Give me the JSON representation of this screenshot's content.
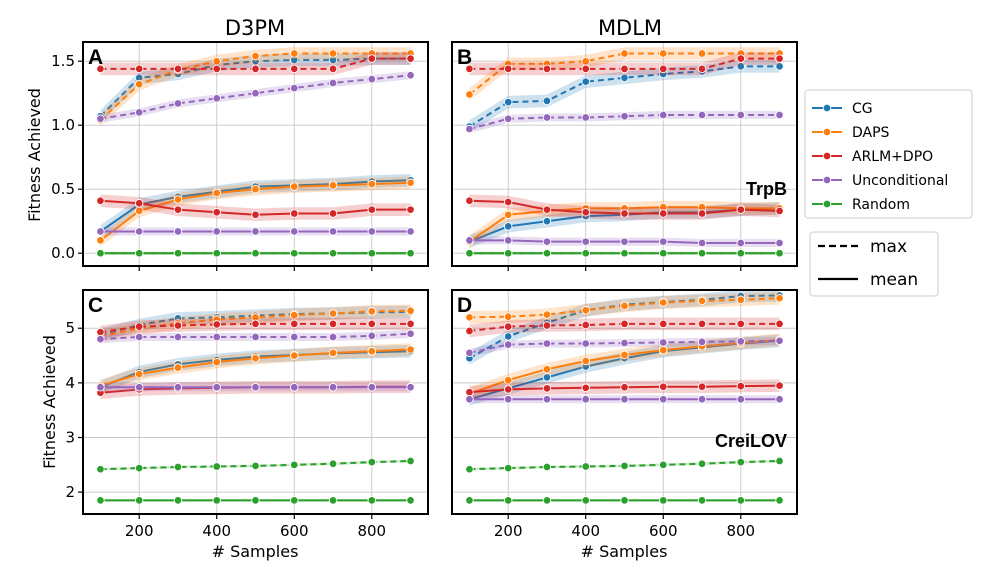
{
  "chart_data": {
    "type": "line",
    "x": [
      100,
      200,
      300,
      400,
      500,
      600,
      700,
      800,
      900
    ],
    "xlabel": "# Samples",
    "ylabel": "Fitness Achieved",
    "xticks": [
      200,
      400,
      600,
      800
    ],
    "colors": {
      "CG": "#1f77b4",
      "DAPS": "#ff7f0e",
      "ARLM+DPO": "#d62728",
      "Unconditional": "#9467bd",
      "Random": "#2ca02c"
    },
    "column_titles": [
      "D3PM",
      "MDLM"
    ],
    "legend": {
      "entries": [
        "CG",
        "DAPS",
        "ARLM+DPO",
        "Unconditional",
        "Random"
      ],
      "styles": [
        "max",
        "mean"
      ],
      "placement": "right"
    },
    "panels": [
      {
        "letter": "A",
        "annotation": "",
        "ylim": [
          -0.1,
          1.65
        ],
        "yticks": [
          0.0,
          0.5,
          1.0,
          1.5
        ],
        "series": [
          {
            "name": "CG",
            "stat": "max",
            "values": [
              1.07,
              1.37,
              1.4,
              1.47,
              1.5,
              1.51,
              1.51,
              1.52,
              1.52
            ]
          },
          {
            "name": "CG",
            "stat": "mean",
            "values": [
              0.17,
              0.38,
              0.44,
              0.48,
              0.52,
              0.53,
              0.54,
              0.56,
              0.57
            ]
          },
          {
            "name": "DAPS",
            "stat": "max",
            "values": [
              1.04,
              1.32,
              1.43,
              1.5,
              1.54,
              1.56,
              1.56,
              1.56,
              1.56
            ]
          },
          {
            "name": "DAPS",
            "stat": "mean",
            "values": [
              0.1,
              0.33,
              0.42,
              0.47,
              0.5,
              0.52,
              0.53,
              0.54,
              0.55
            ]
          },
          {
            "name": "ARLM+DPO",
            "stat": "max",
            "values": [
              1.44,
              1.44,
              1.44,
              1.44,
              1.44,
              1.44,
              1.44,
              1.52,
              1.52
            ]
          },
          {
            "name": "ARLM+DPO",
            "stat": "mean",
            "values": [
              0.41,
              0.39,
              0.34,
              0.32,
              0.3,
              0.31,
              0.31,
              0.34,
              0.34
            ]
          },
          {
            "name": "Unconditional",
            "stat": "max",
            "values": [
              1.05,
              1.1,
              1.17,
              1.21,
              1.25,
              1.29,
              1.33,
              1.36,
              1.39
            ]
          },
          {
            "name": "Unconditional",
            "stat": "mean",
            "values": [
              0.17,
              0.17,
              0.17,
              0.17,
              0.17,
              0.17,
              0.17,
              0.17,
              0.17
            ]
          },
          {
            "name": "Random",
            "stat": "max",
            "values": [
              0.0,
              0.0,
              0.0,
              0.0,
              0.0,
              0.0,
              0.0,
              0.0,
              0.0
            ]
          },
          {
            "name": "Random",
            "stat": "mean",
            "values": [
              0.0,
              0.0,
              0.0,
              0.0,
              0.0,
              0.0,
              0.0,
              0.0,
              0.0
            ]
          }
        ]
      },
      {
        "letter": "B",
        "annotation": "TrpB",
        "ylim": [
          -0.1,
          1.65
        ],
        "yticks": [
          0.0,
          0.5,
          1.0,
          1.5
        ],
        "series": [
          {
            "name": "CG",
            "stat": "max",
            "values": [
              0.99,
              1.18,
              1.19,
              1.34,
              1.37,
              1.4,
              1.42,
              1.46,
              1.46
            ]
          },
          {
            "name": "CG",
            "stat": "mean",
            "values": [
              0.09,
              0.21,
              0.25,
              0.29,
              0.3,
              0.32,
              0.32,
              0.34,
              0.35
            ]
          },
          {
            "name": "DAPS",
            "stat": "max",
            "values": [
              1.24,
              1.48,
              1.48,
              1.5,
              1.56,
              1.56,
              1.56,
              1.56,
              1.56
            ]
          },
          {
            "name": "DAPS",
            "stat": "mean",
            "values": [
              0.09,
              0.3,
              0.33,
              0.35,
              0.35,
              0.36,
              0.36,
              0.35,
              0.35
            ]
          },
          {
            "name": "ARLM+DPO",
            "stat": "max",
            "values": [
              1.44,
              1.44,
              1.44,
              1.44,
              1.44,
              1.44,
              1.44,
              1.52,
              1.52
            ]
          },
          {
            "name": "ARLM+DPO",
            "stat": "mean",
            "values": [
              0.41,
              0.4,
              0.34,
              0.32,
              0.31,
              0.31,
              0.31,
              0.34,
              0.33
            ]
          },
          {
            "name": "Unconditional",
            "stat": "max",
            "values": [
              0.97,
              1.05,
              1.06,
              1.06,
              1.07,
              1.08,
              1.08,
              1.08,
              1.08
            ]
          },
          {
            "name": "Unconditional",
            "stat": "mean",
            "values": [
              0.1,
              0.1,
              0.09,
              0.09,
              0.09,
              0.09,
              0.08,
              0.08,
              0.08
            ]
          },
          {
            "name": "Random",
            "stat": "max",
            "values": [
              0.0,
              0.0,
              0.0,
              0.0,
              0.0,
              0.0,
              0.0,
              0.0,
              0.0
            ]
          },
          {
            "name": "Random",
            "stat": "mean",
            "values": [
              0.0,
              0.0,
              0.0,
              0.0,
              0.0,
              0.0,
              0.0,
              0.0,
              0.0
            ]
          }
        ]
      },
      {
        "letter": "C",
        "annotation": "",
        "ylim": [
          1.6,
          5.7
        ],
        "yticks": [
          2,
          3,
          4,
          5
        ],
        "series": [
          {
            "name": "CG",
            "stat": "max",
            "values": [
              4.88,
              5.06,
              5.18,
              5.2,
              5.23,
              5.26,
              5.27,
              5.29,
              5.3
            ]
          },
          {
            "name": "CG",
            "stat": "mean",
            "values": [
              3.92,
              4.2,
              4.34,
              4.42,
              4.48,
              4.51,
              4.54,
              4.56,
              4.58
            ]
          },
          {
            "name": "DAPS",
            "stat": "max",
            "values": [
              4.85,
              5.0,
              5.09,
              5.16,
              5.2,
              5.24,
              5.27,
              5.31,
              5.32
            ]
          },
          {
            "name": "DAPS",
            "stat": "mean",
            "values": [
              3.95,
              4.16,
              4.28,
              4.38,
              4.45,
              4.5,
              4.55,
              4.58,
              4.61
            ]
          },
          {
            "name": "ARLM+DPO",
            "stat": "max",
            "values": [
              4.93,
              5.03,
              5.05,
              5.07,
              5.08,
              5.08,
              5.08,
              5.08,
              5.08
            ]
          },
          {
            "name": "ARLM+DPO",
            "stat": "mean",
            "values": [
              3.82,
              3.88,
              3.9,
              3.91,
              3.92,
              3.92,
              3.92,
              3.93,
              3.93
            ]
          },
          {
            "name": "Unconditional",
            "stat": "max",
            "values": [
              4.8,
              4.84,
              4.84,
              4.84,
              4.84,
              4.84,
              4.84,
              4.86,
              4.9
            ]
          },
          {
            "name": "Unconditional",
            "stat": "mean",
            "values": [
              3.92,
              3.92,
              3.92,
              3.92,
              3.92,
              3.92,
              3.92,
              3.92,
              3.92
            ]
          },
          {
            "name": "Random",
            "stat": "max",
            "values": [
              2.42,
              2.44,
              2.46,
              2.47,
              2.48,
              2.5,
              2.52,
              2.55,
              2.57
            ]
          },
          {
            "name": "Random",
            "stat": "mean",
            "values": [
              1.85,
              1.85,
              1.85,
              1.85,
              1.85,
              1.85,
              1.85,
              1.85,
              1.85
            ]
          }
        ]
      },
      {
        "letter": "D",
        "annotation": "CreiLOV",
        "ylim": [
          1.6,
          5.7
        ],
        "yticks": [
          2,
          3,
          4,
          5
        ],
        "series": [
          {
            "name": "CG",
            "stat": "max",
            "values": [
              4.45,
              4.85,
              5.1,
              5.33,
              5.43,
              5.48,
              5.52,
              5.59,
              5.6
            ]
          },
          {
            "name": "CG",
            "stat": "mean",
            "values": [
              3.7,
              3.9,
              4.1,
              4.3,
              4.45,
              4.58,
              4.65,
              4.72,
              4.77
            ]
          },
          {
            "name": "DAPS",
            "stat": "max",
            "values": [
              5.2,
              5.21,
              5.25,
              5.33,
              5.41,
              5.47,
              5.5,
              5.52,
              5.55
            ]
          },
          {
            "name": "DAPS",
            "stat": "mean",
            "values": [
              3.8,
              4.05,
              4.25,
              4.4,
              4.51,
              4.6,
              4.67,
              4.73,
              4.79
            ]
          },
          {
            "name": "ARLM+DPO",
            "stat": "max",
            "values": [
              4.95,
              5.03,
              5.05,
              5.06,
              5.08,
              5.08,
              5.08,
              5.08,
              5.08
            ]
          },
          {
            "name": "ARLM+DPO",
            "stat": "mean",
            "values": [
              3.83,
              3.88,
              3.9,
              3.91,
              3.92,
              3.93,
              3.93,
              3.94,
              3.95
            ]
          },
          {
            "name": "Unconditional",
            "stat": "max",
            "values": [
              4.55,
              4.7,
              4.72,
              4.72,
              4.73,
              4.74,
              4.75,
              4.76,
              4.77
            ]
          },
          {
            "name": "Unconditional",
            "stat": "mean",
            "values": [
              3.7,
              3.7,
              3.7,
              3.7,
              3.7,
              3.7,
              3.7,
              3.7,
              3.7
            ]
          },
          {
            "name": "Random",
            "stat": "max",
            "values": [
              2.42,
              2.44,
              2.46,
              2.47,
              2.48,
              2.5,
              2.52,
              2.55,
              2.57
            ]
          },
          {
            "name": "Random",
            "stat": "mean",
            "values": [
              1.85,
              1.85,
              1.85,
              1.85,
              1.85,
              1.85,
              1.85,
              1.85,
              1.85
            ]
          }
        ]
      }
    ]
  }
}
